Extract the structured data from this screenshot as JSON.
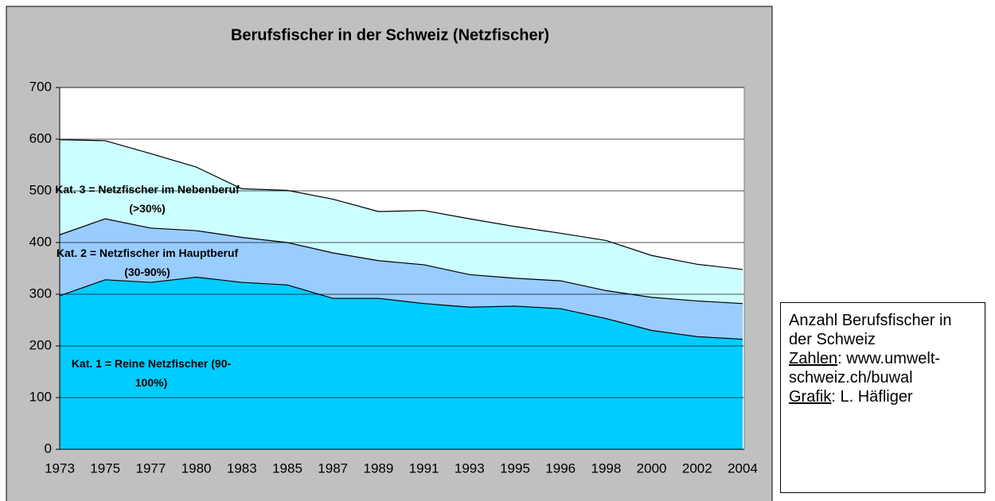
{
  "chart_data": {
    "type": "stacked_area",
    "title": "Berufsfischer in der Schweiz (Netzfischer)",
    "categories": [
      "1973",
      "1975",
      "1977",
      "1980",
      "1983",
      "1985",
      "1987",
      "1989",
      "1991",
      "1993",
      "1995",
      "1996",
      "1998",
      "2000",
      "2002",
      "2004"
    ],
    "series": [
      {
        "name": "Kat. 1 = Reine Netzfischer (90-100%)",
        "color": "#00ccff",
        "values": [
          297,
          328,
          323,
          333,
          323,
          318,
          292,
          292,
          282,
          275,
          277,
          272,
          253,
          230,
          218,
          213
        ]
      },
      {
        "name": "Kat. 2 = Netzfischer im Hauptberuf (30-90%)",
        "color": "#99ccff",
        "values": [
          118,
          118,
          105,
          90,
          87,
          82,
          88,
          73,
          75,
          63,
          54,
          54,
          54,
          64,
          69,
          69
        ]
      },
      {
        "name": "Kat. 3 = Netzfischer im Nebenberuf (>30%)",
        "color": "#ccffff",
        "values": [
          184,
          151,
          144,
          123,
          94,
          101,
          104,
          95,
          105,
          108,
          100,
          92,
          97,
          81,
          71,
          66
        ]
      }
    ],
    "ylim": [
      0,
      700
    ],
    "yticks": [
      0,
      100,
      200,
      300,
      400,
      500,
      600,
      700
    ],
    "grid": true
  },
  "source_box": {
    "title": "Anzahl Berufsfischer in der Schweiz",
    "source_label": "Zahlen",
    "source_sep": ":",
    "source": "www.umwelt-schweiz.ch/buwal",
    "credit_label": "Grafik",
    "credit_sep": ":",
    "credit": "L. Häfliger"
  }
}
